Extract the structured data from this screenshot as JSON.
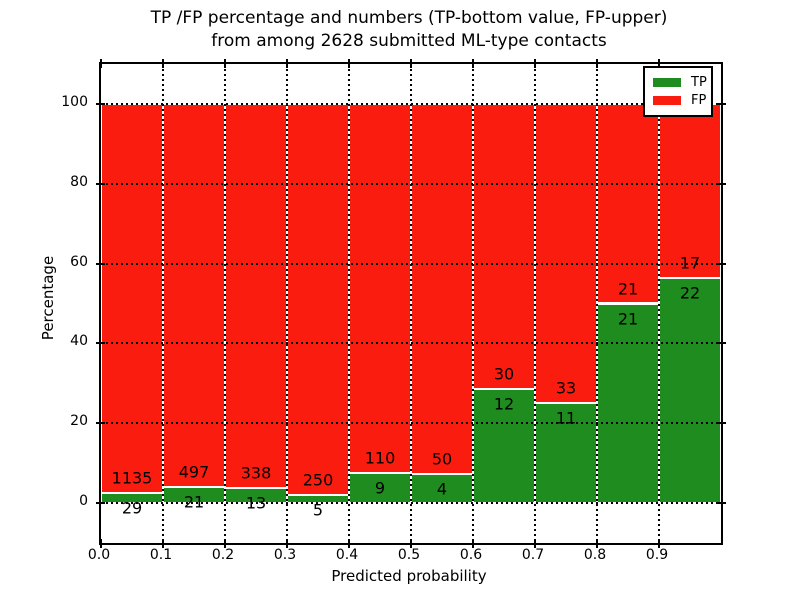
{
  "title": {
    "line1": "TP /FP percentage and numbers (TP-bottom value, FP-upper)",
    "line2": "from among 2628 submitted ML-type contacts"
  },
  "legend": {
    "position": "upper right",
    "entries": [
      {
        "label": "TP",
        "color": "#1e8c1e"
      },
      {
        "label": "FP",
        "color": "#fb1c10"
      }
    ]
  },
  "chart_data": {
    "type": "bar",
    "subtype": "stacked_percentage",
    "title": "TP /FP percentage and numbers (TP-bottom value, FP-upper)\nfrom among 2628 submitted ML-type contacts",
    "xlabel": "Predicted probability",
    "ylabel": "Percentage",
    "xlim": [
      0.0,
      1.0
    ],
    "ylim": [
      -10,
      110
    ],
    "x_tick_labels": [
      "0.0",
      "0.1",
      "0.2",
      "0.3",
      "0.4",
      "0.5",
      "0.6",
      "0.7",
      "0.8",
      "0.9"
    ],
    "y_tick_values": [
      0,
      20,
      40,
      60,
      80,
      100
    ],
    "y_tick_labels": [
      "0",
      "20",
      "40",
      "60",
      "80",
      "100"
    ],
    "grid": {
      "visible": true,
      "style": "dotted",
      "color": "#000000"
    },
    "legend_position": "upper right",
    "bin_edges": [
      0.0,
      0.1,
      0.2,
      0.3,
      0.4,
      0.5,
      0.6,
      0.7,
      0.8,
      0.9,
      1.0
    ],
    "categories": [
      "0.0-0.1",
      "0.1-0.2",
      "0.2-0.3",
      "0.3-0.4",
      "0.4-0.5",
      "0.5-0.6",
      "0.6-0.7",
      "0.7-0.8",
      "0.8-0.9",
      "0.9-1.0"
    ],
    "series": [
      {
        "name": "TP",
        "color": "#1e8c1e",
        "stack_position": "bottom",
        "counts": [
          29,
          21,
          13,
          5,
          9,
          4,
          12,
          11,
          21,
          22
        ]
      },
      {
        "name": "FP",
        "color": "#fb1c10",
        "stack_position": "top",
        "counts": [
          1135,
          497,
          338,
          250,
          110,
          50,
          30,
          33,
          21,
          17
        ]
      }
    ],
    "bar_height_unit": "percent_of_bin_total",
    "value_labels": "FP count above TP/FP boundary, TP count below boundary",
    "total_submitted": 2628
  }
}
